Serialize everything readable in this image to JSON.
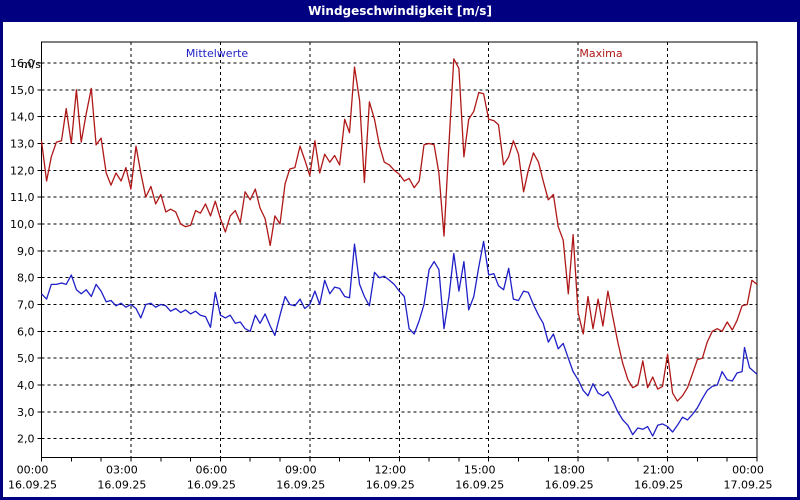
{
  "window": {
    "title": "Windgeschwindigkeit [m/s]",
    "colors": {
      "titlebar_bg": "#000080",
      "titlebar_text": "#ffffff",
      "border": "#000080",
      "plot_bg": "#ffffff"
    }
  },
  "chart_data": {
    "type": "line",
    "title": "Windgeschwindigkeit [m/s]",
    "legend_position": "top",
    "grid": "dashed black, horizontal every 1 m/s, vertical every 3 h",
    "x_axis": {
      "range_hours": [
        0,
        24
      ],
      "major_tick_hours": 3,
      "minor_tick_hours": 1,
      "tick_labels": [
        {
          "time": "00:00",
          "date": "16.09.25"
        },
        {
          "time": "03:00",
          "date": "16.09.25"
        },
        {
          "time": "06:00",
          "date": "16.09.25"
        },
        {
          "time": "09:00",
          "date": "16.09.25"
        },
        {
          "time": "12:00",
          "date": "16.09.25"
        },
        {
          "time": "15:00",
          "date": "16.09.25"
        },
        {
          "time": "18:00",
          "date": "16.09.25"
        },
        {
          "time": "21:00",
          "date": "16.09.25"
        },
        {
          "time": "00:00",
          "date": "17.09.25"
        }
      ]
    },
    "y_axis": {
      "unit": "m/s",
      "ylim": [
        1.3,
        16.78
      ],
      "tick_values": [
        16,
        15,
        14,
        13,
        12,
        11,
        10,
        9,
        8,
        7,
        6,
        5,
        4,
        3,
        2
      ],
      "tick_labels": [
        "16,0",
        "15,0",
        "14,0",
        "13,0",
        "12,0",
        "11,0",
        "10,0",
        "9,0",
        "8,0",
        "7,0",
        "6,0",
        "5,0",
        "4,0",
        "3,0",
        "2,0"
      ]
    },
    "series": [
      {
        "name": "Mittelwerte",
        "color": "#2020c8",
        "points": [
          [
            0,
            7.4
          ],
          [
            0.17,
            7.2
          ],
          [
            0.33,
            7.75
          ],
          [
            0.5,
            7.75
          ],
          [
            0.67,
            7.8
          ],
          [
            0.83,
            7.75
          ],
          [
            1,
            8.1
          ],
          [
            1.17,
            7.55
          ],
          [
            1.33,
            7.4
          ],
          [
            1.5,
            7.55
          ],
          [
            1.67,
            7.3
          ],
          [
            1.83,
            7.75
          ],
          [
            2,
            7.5
          ],
          [
            2.17,
            7.1
          ],
          [
            2.33,
            7.15
          ],
          [
            2.5,
            6.95
          ],
          [
            2.67,
            7.05
          ],
          [
            2.83,
            6.9
          ],
          [
            3,
            7.0
          ],
          [
            3.17,
            6.85
          ],
          [
            3.33,
            6.5
          ],
          [
            3.5,
            7.0
          ],
          [
            3.67,
            7.05
          ],
          [
            3.83,
            6.9
          ],
          [
            4,
            7.0
          ],
          [
            4.17,
            6.95
          ],
          [
            4.33,
            6.75
          ],
          [
            4.5,
            6.85
          ],
          [
            4.67,
            6.7
          ],
          [
            4.83,
            6.8
          ],
          [
            5,
            6.65
          ],
          [
            5.17,
            6.75
          ],
          [
            5.33,
            6.6
          ],
          [
            5.5,
            6.55
          ],
          [
            5.67,
            6.15
          ],
          [
            5.83,
            7.45
          ],
          [
            6,
            6.6
          ],
          [
            6.17,
            6.5
          ],
          [
            6.33,
            6.6
          ],
          [
            6.5,
            6.3
          ],
          [
            6.67,
            6.35
          ],
          [
            6.83,
            6.1
          ],
          [
            7,
            6.0
          ],
          [
            7.17,
            6.6
          ],
          [
            7.33,
            6.3
          ],
          [
            7.5,
            6.65
          ],
          [
            7.67,
            6.2
          ],
          [
            7.83,
            5.85
          ],
          [
            8,
            6.6
          ],
          [
            8.17,
            7.3
          ],
          [
            8.33,
            7.0
          ],
          [
            8.5,
            6.95
          ],
          [
            8.67,
            7.2
          ],
          [
            8.83,
            6.85
          ],
          [
            9,
            7.0
          ],
          [
            9.17,
            7.5
          ],
          [
            9.33,
            7.0
          ],
          [
            9.5,
            7.9
          ],
          [
            9.67,
            7.4
          ],
          [
            9.83,
            7.65
          ],
          [
            10,
            7.6
          ],
          [
            10.17,
            7.3
          ],
          [
            10.33,
            7.25
          ],
          [
            10.5,
            9.25
          ],
          [
            10.67,
            7.75
          ],
          [
            10.83,
            7.3
          ],
          [
            11,
            6.95
          ],
          [
            11.17,
            8.2
          ],
          [
            11.33,
            8.0
          ],
          [
            11.5,
            8.05
          ],
          [
            11.67,
            7.9
          ],
          [
            11.83,
            7.75
          ],
          [
            12,
            7.5
          ],
          [
            12.17,
            7.3
          ],
          [
            12.33,
            6.1
          ],
          [
            12.5,
            5.9
          ],
          [
            12.67,
            6.4
          ],
          [
            12.83,
            7.0
          ],
          [
            13,
            8.3
          ],
          [
            13.17,
            8.6
          ],
          [
            13.33,
            8.3
          ],
          [
            13.5,
            6.1
          ],
          [
            13.67,
            7.3
          ],
          [
            13.83,
            8.9
          ],
          [
            14,
            7.5
          ],
          [
            14.17,
            8.6
          ],
          [
            14.33,
            6.8
          ],
          [
            14.5,
            7.3
          ],
          [
            14.67,
            8.4
          ],
          [
            14.83,
            9.35
          ],
          [
            15,
            8.1
          ],
          [
            15.17,
            8.15
          ],
          [
            15.33,
            7.7
          ],
          [
            15.5,
            7.55
          ],
          [
            15.67,
            8.35
          ],
          [
            15.83,
            7.2
          ],
          [
            16,
            7.15
          ],
          [
            16.17,
            7.5
          ],
          [
            16.33,
            7.45
          ],
          [
            16.5,
            7.0
          ],
          [
            16.67,
            6.6
          ],
          [
            16.83,
            6.3
          ],
          [
            17,
            5.6
          ],
          [
            17.17,
            5.9
          ],
          [
            17.33,
            5.35
          ],
          [
            17.5,
            5.55
          ],
          [
            17.67,
            5.0
          ],
          [
            17.83,
            4.5
          ],
          [
            18,
            4.2
          ],
          [
            18.17,
            3.8
          ],
          [
            18.33,
            3.6
          ],
          [
            18.5,
            4.05
          ],
          [
            18.67,
            3.7
          ],
          [
            18.83,
            3.6
          ],
          [
            19,
            3.75
          ],
          [
            19.17,
            3.4
          ],
          [
            19.33,
            3.0
          ],
          [
            19.5,
            2.7
          ],
          [
            19.67,
            2.5
          ],
          [
            19.83,
            2.15
          ],
          [
            20,
            2.4
          ],
          [
            20.17,
            2.35
          ],
          [
            20.33,
            2.45
          ],
          [
            20.5,
            2.1
          ],
          [
            20.67,
            2.5
          ],
          [
            20.83,
            2.55
          ],
          [
            21,
            2.45
          ],
          [
            21.17,
            2.25
          ],
          [
            21.33,
            2.5
          ],
          [
            21.5,
            2.8
          ],
          [
            21.67,
            2.7
          ],
          [
            21.83,
            2.9
          ],
          [
            22,
            3.15
          ],
          [
            22.17,
            3.5
          ],
          [
            22.33,
            3.8
          ],
          [
            22.5,
            3.95
          ],
          [
            22.67,
            4.0
          ],
          [
            22.83,
            4.5
          ],
          [
            23,
            4.2
          ],
          [
            23.17,
            4.15
          ],
          [
            23.33,
            4.45
          ],
          [
            23.5,
            4.5
          ],
          [
            23.58,
            5.4
          ],
          [
            23.75,
            4.65
          ],
          [
            24,
            4.4
          ]
        ]
      },
      {
        "name": "Maxima",
        "color": "#b01818",
        "points": [
          [
            0,
            13.1
          ],
          [
            0.17,
            11.6
          ],
          [
            0.33,
            12.5
          ],
          [
            0.5,
            13.05
          ],
          [
            0.67,
            13.1
          ],
          [
            0.83,
            14.3
          ],
          [
            1,
            13.0
          ],
          [
            1.17,
            15.0
          ],
          [
            1.33,
            13.05
          ],
          [
            1.5,
            14.1
          ],
          [
            1.67,
            15.05
          ],
          [
            1.83,
            12.95
          ],
          [
            2,
            13.2
          ],
          [
            2.17,
            11.9
          ],
          [
            2.33,
            11.45
          ],
          [
            2.5,
            11.9
          ],
          [
            2.67,
            11.6
          ],
          [
            2.83,
            12.1
          ],
          [
            3,
            11.3
          ],
          [
            3.17,
            12.9
          ],
          [
            3.33,
            11.9
          ],
          [
            3.5,
            11.0
          ],
          [
            3.67,
            11.4
          ],
          [
            3.83,
            10.75
          ],
          [
            4,
            11.1
          ],
          [
            4.17,
            10.45
          ],
          [
            4.33,
            10.55
          ],
          [
            4.5,
            10.45
          ],
          [
            4.67,
            10.0
          ],
          [
            4.83,
            9.9
          ],
          [
            5,
            9.95
          ],
          [
            5.17,
            10.5
          ],
          [
            5.33,
            10.4
          ],
          [
            5.5,
            10.75
          ],
          [
            5.67,
            10.3
          ],
          [
            5.83,
            10.85
          ],
          [
            6,
            10.2
          ],
          [
            6.17,
            9.7
          ],
          [
            6.33,
            10.3
          ],
          [
            6.5,
            10.5
          ],
          [
            6.67,
            10.05
          ],
          [
            6.83,
            11.2
          ],
          [
            7,
            10.9
          ],
          [
            7.17,
            11.3
          ],
          [
            7.33,
            10.6
          ],
          [
            7.5,
            10.2
          ],
          [
            7.67,
            9.2
          ],
          [
            7.83,
            10.3
          ],
          [
            8,
            10.0
          ],
          [
            8.17,
            11.5
          ],
          [
            8.33,
            12.05
          ],
          [
            8.5,
            12.1
          ],
          [
            8.67,
            12.9
          ],
          [
            8.83,
            12.4
          ],
          [
            9,
            11.8
          ],
          [
            9.17,
            13.1
          ],
          [
            9.33,
            11.9
          ],
          [
            9.5,
            12.6
          ],
          [
            9.67,
            12.3
          ],
          [
            9.83,
            12.55
          ],
          [
            10,
            12.2
          ],
          [
            10.17,
            13.9
          ],
          [
            10.33,
            13.4
          ],
          [
            10.5,
            15.85
          ],
          [
            10.67,
            14.6
          ],
          [
            10.83,
            11.55
          ],
          [
            11,
            14.55
          ],
          [
            11.17,
            13.9
          ],
          [
            11.33,
            12.95
          ],
          [
            11.5,
            12.3
          ],
          [
            11.67,
            12.2
          ],
          [
            11.83,
            12.0
          ],
          [
            12,
            11.85
          ],
          [
            12.17,
            11.6
          ],
          [
            12.33,
            11.7
          ],
          [
            12.5,
            11.35
          ],
          [
            12.67,
            11.6
          ],
          [
            12.83,
            12.95
          ],
          [
            13,
            13.0
          ],
          [
            13.17,
            12.95
          ],
          [
            13.33,
            11.9
          ],
          [
            13.5,
            9.55
          ],
          [
            13.67,
            13.0
          ],
          [
            13.83,
            16.15
          ],
          [
            14,
            15.8
          ],
          [
            14.17,
            12.5
          ],
          [
            14.33,
            13.9
          ],
          [
            14.5,
            14.2
          ],
          [
            14.67,
            14.9
          ],
          [
            14.83,
            14.85
          ],
          [
            15,
            13.9
          ],
          [
            15.17,
            13.85
          ],
          [
            15.33,
            13.7
          ],
          [
            15.5,
            12.2
          ],
          [
            15.67,
            12.5
          ],
          [
            15.83,
            13.1
          ],
          [
            16,
            12.6
          ],
          [
            16.17,
            11.2
          ],
          [
            16.33,
            12.0
          ],
          [
            16.5,
            12.65
          ],
          [
            16.67,
            12.3
          ],
          [
            16.83,
            11.6
          ],
          [
            17,
            10.9
          ],
          [
            17.17,
            11.1
          ],
          [
            17.33,
            9.9
          ],
          [
            17.5,
            9.4
          ],
          [
            17.67,
            7.4
          ],
          [
            17.83,
            9.6
          ],
          [
            18,
            6.7
          ],
          [
            18.17,
            5.9
          ],
          [
            18.33,
            7.3
          ],
          [
            18.5,
            6.1
          ],
          [
            18.67,
            7.2
          ],
          [
            18.83,
            6.2
          ],
          [
            19,
            7.5
          ],
          [
            19.17,
            6.5
          ],
          [
            19.33,
            5.6
          ],
          [
            19.5,
            4.8
          ],
          [
            19.67,
            4.2
          ],
          [
            19.83,
            3.9
          ],
          [
            20,
            4.0
          ],
          [
            20.17,
            4.9
          ],
          [
            20.33,
            3.9
          ],
          [
            20.5,
            4.3
          ],
          [
            20.67,
            3.85
          ],
          [
            20.83,
            3.95
          ],
          [
            21,
            5.15
          ],
          [
            21.17,
            3.7
          ],
          [
            21.33,
            3.4
          ],
          [
            21.5,
            3.6
          ],
          [
            21.67,
            3.9
          ],
          [
            21.83,
            4.4
          ],
          [
            22,
            4.95
          ],
          [
            22.17,
            5.0
          ],
          [
            22.33,
            5.6
          ],
          [
            22.5,
            6.0
          ],
          [
            22.67,
            6.1
          ],
          [
            22.83,
            6.0
          ],
          [
            23,
            6.35
          ],
          [
            23.17,
            6.05
          ],
          [
            23.33,
            6.4
          ],
          [
            23.5,
            6.95
          ],
          [
            23.67,
            7.0
          ],
          [
            23.83,
            7.9
          ],
          [
            24,
            7.75
          ]
        ]
      }
    ]
  }
}
